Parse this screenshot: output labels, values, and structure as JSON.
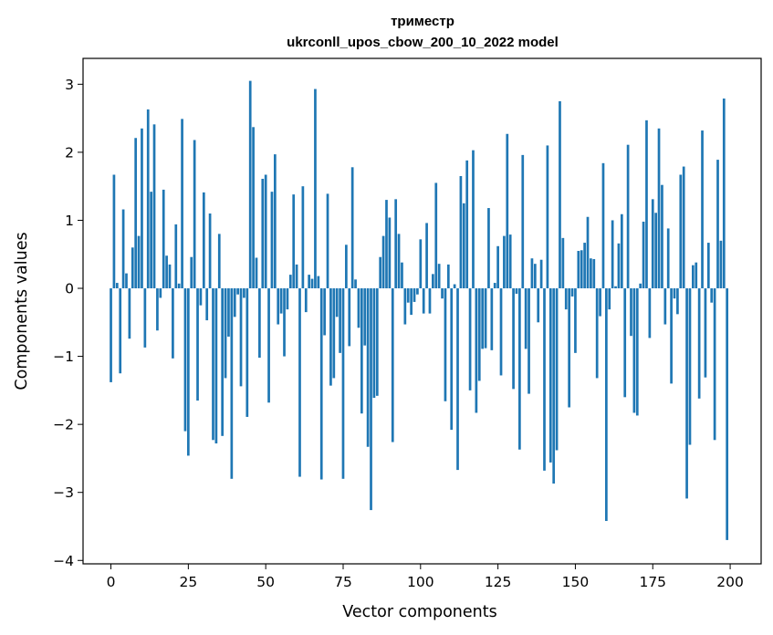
{
  "chart_data": {
    "type": "bar",
    "title": "триместр",
    "subtitle": "ukrconll_upos_cbow_200_10_2022 model",
    "xlabel": "Vector components",
    "ylabel": "Components values",
    "xlim": [
      -9,
      210
    ],
    "ylim": [
      -4.05,
      3.38
    ],
    "xticks": [
      0,
      25,
      50,
      75,
      100,
      125,
      150,
      175,
      200
    ],
    "yticks": [
      -4,
      -3,
      -2,
      -1,
      0,
      1,
      2,
      3
    ],
    "bar_color": "#1f77b4",
    "grid": false,
    "values": [
      -1.38,
      1.67,
      0.08,
      -1.25,
      1.16,
      0.22,
      -0.74,
      0.6,
      2.21,
      0.77,
      2.35,
      -0.87,
      2.63,
      1.42,
      2.41,
      -0.62,
      -0.14,
      1.45,
      0.48,
      0.35,
      -1.03,
      0.94,
      0.07,
      2.49,
      -2.1,
      -2.46,
      0.46,
      2.18,
      -1.65,
      -0.25,
      1.41,
      -0.47,
      1.1,
      -2.23,
      -2.28,
      0.8,
      -2.17,
      -1.32,
      -0.71,
      -2.8,
      -0.42,
      -0.09,
      -1.44,
      -0.14,
      -1.89,
      3.05,
      2.37,
      0.45,
      -1.02,
      1.61,
      1.67,
      -1.68,
      1.42,
      1.97,
      -0.53,
      -0.37,
      -1.0,
      -0.31,
      0.2,
      1.38,
      0.35,
      -2.77,
      1.5,
      -0.35,
      0.2,
      0.14,
      2.93,
      0.18,
      -2.81,
      -0.69,
      1.39,
      -1.43,
      -1.32,
      -0.42,
      -0.95,
      -2.8,
      0.64,
      -0.85,
      1.78,
      0.13,
      -0.58,
      -1.84,
      -0.84,
      -2.33,
      -3.26,
      -1.61,
      -1.58,
      0.46,
      0.77,
      1.3,
      1.04,
      -2.26,
      1.31,
      0.8,
      0.38,
      -0.53,
      -0.21,
      -0.39,
      -0.2,
      -0.09,
      0.72,
      -0.37,
      0.96,
      -0.37,
      0.21,
      1.55,
      0.36,
      -0.15,
      -1.66,
      0.35,
      -2.08,
      0.06,
      -2.67,
      1.65,
      1.25,
      1.88,
      -1.5,
      2.03,
      -1.83,
      -1.36,
      -0.89,
      -0.88,
      1.18,
      -0.91,
      0.08,
      0.62,
      -1.28,
      0.77,
      2.27,
      0.79,
      -1.48,
      -0.08,
      -2.37,
      1.96,
      -0.89,
      -1.55,
      0.44,
      0.36,
      -0.5,
      0.42,
      -2.68,
      2.1,
      -2.56,
      -2.87,
      -2.38,
      2.75,
      0.74,
      -0.31,
      -1.75,
      -0.12,
      -0.95,
      0.55,
      0.56,
      0.67,
      1.05,
      0.44,
      0.43,
      -1.32,
      -0.41,
      1.84,
      -3.42,
      -0.31,
      1.0,
      0.03,
      0.66,
      1.09,
      -1.6,
      2.11,
      -0.7,
      -1.83,
      -1.87,
      0.07,
      0.98,
      2.47,
      -0.73,
      1.31,
      1.11,
      2.35,
      1.52,
      -0.53,
      0.88,
      -1.4,
      -0.15,
      -0.38,
      1.67,
      1.79,
      -3.09,
      -2.3,
      0.34,
      0.38,
      -1.62,
      2.32,
      -1.31,
      0.67,
      -0.21,
      -2.23,
      1.89,
      0.7,
      2.79,
      -3.7
    ]
  }
}
